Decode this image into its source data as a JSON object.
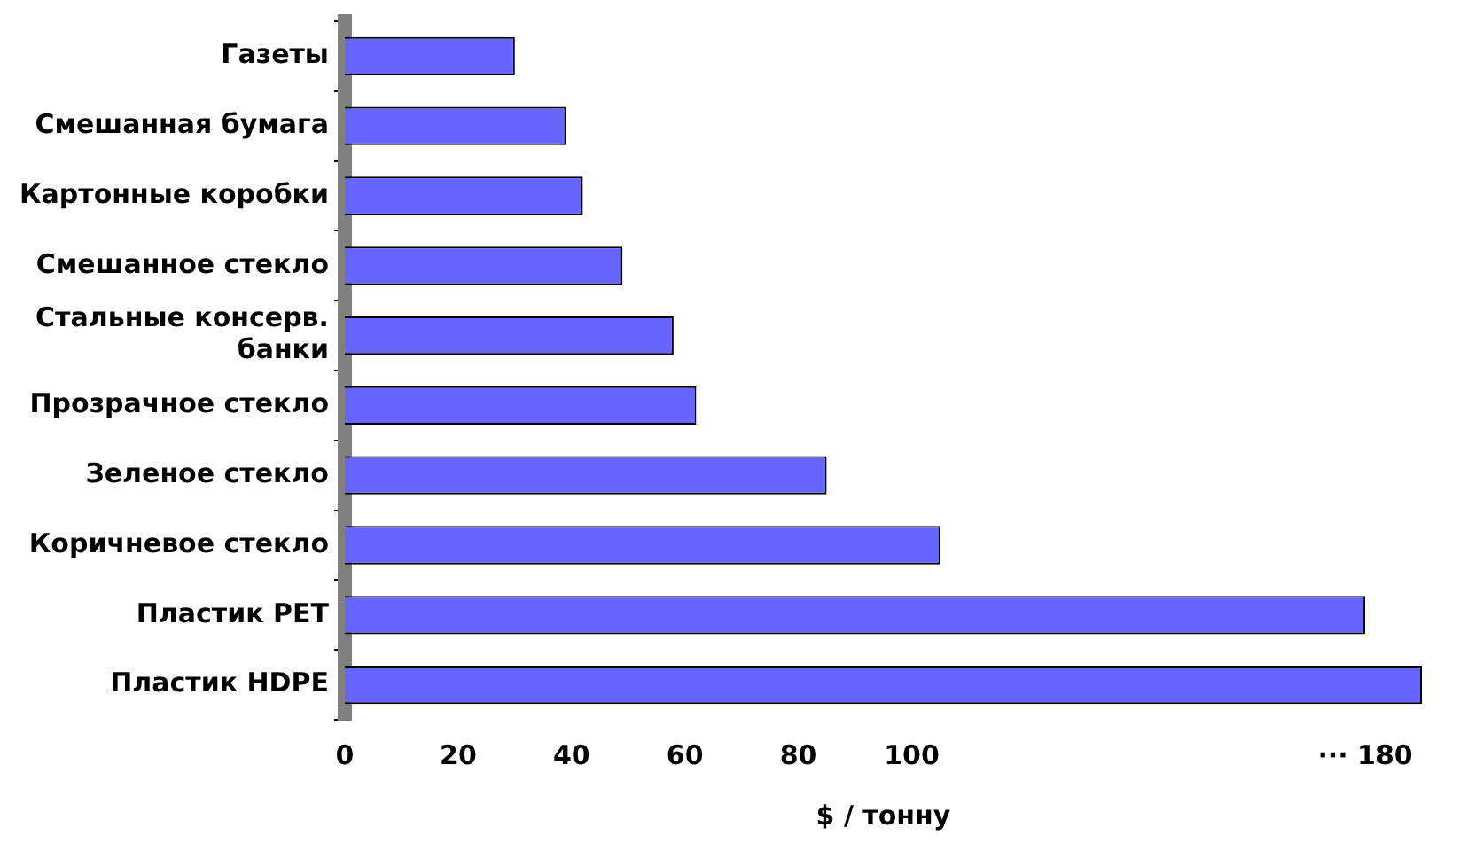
{
  "chart_data": {
    "type": "bar",
    "orientation": "horizontal",
    "xlabel": "$ / тонну",
    "categories": [
      "Газеты",
      "Смешанная бумага",
      "Картонные коробки",
      "Смешанное стекло",
      "Стальные консерв. банки",
      "Прозрачное стекло",
      "Зеленое стекло",
      "Коричневое стекло",
      "Пластик PET",
      "Пластик HDPE"
    ],
    "values": [
      30,
      39,
      42,
      49,
      58,
      62,
      85,
      105,
      180,
      190
    ],
    "color": "#6666ff",
    "xlim": [
      0,
      190
    ],
    "xticks": [
      0,
      20,
      40,
      60,
      80,
      100,
      {
        "value": 180,
        "label": "··· 180"
      }
    ],
    "grid": false,
    "legend": false
  }
}
